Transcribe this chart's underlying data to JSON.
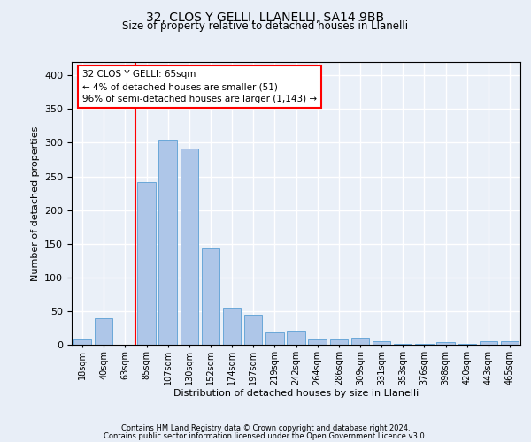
{
  "title1": "32, CLOS Y GELLI, LLANELLI, SA14 9BB",
  "title2": "Size of property relative to detached houses in Llanelli",
  "xlabel": "Distribution of detached houses by size in Llanelli",
  "ylabel": "Number of detached properties",
  "categories": [
    "18sqm",
    "40sqm",
    "63sqm",
    "85sqm",
    "107sqm",
    "130sqm",
    "152sqm",
    "174sqm",
    "197sqm",
    "219sqm",
    "242sqm",
    "264sqm",
    "286sqm",
    "309sqm",
    "331sqm",
    "353sqm",
    "376sqm",
    "398sqm",
    "420sqm",
    "443sqm",
    "465sqm"
  ],
  "values": [
    8,
    39,
    0,
    241,
    305,
    292,
    143,
    55,
    45,
    18,
    20,
    8,
    8,
    11,
    5,
    1,
    1,
    4,
    1,
    5,
    5
  ],
  "bar_color": "#aec6e8",
  "bar_edge_color": "#5a9fd4",
  "annotation_line1": "32 CLOS Y GELLI: 65sqm",
  "annotation_line2": "← 4% of detached houses are smaller (51)",
  "annotation_line3": "96% of semi-detached houses are larger (1,143) →",
  "vline_x_index": 2,
  "footer1": "Contains HM Land Registry data © Crown copyright and database right 2024.",
  "footer2": "Contains public sector information licensed under the Open Government Licence v3.0.",
  "ylim": [
    0,
    420
  ],
  "yticks": [
    0,
    50,
    100,
    150,
    200,
    250,
    300,
    350,
    400
  ],
  "bg_color": "#e8eef7",
  "plot_bg_color": "#eaf0f8"
}
